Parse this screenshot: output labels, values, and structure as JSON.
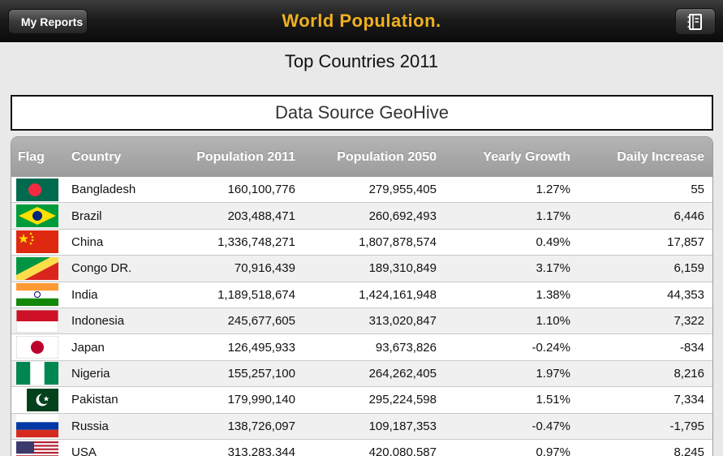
{
  "navbar": {
    "back_label": "My Reports",
    "title": "World Population."
  },
  "subtitle": "Top Countries 2011",
  "source_label": "Data Source GeoHive",
  "table": {
    "headers": [
      "Flag",
      "Country",
      "Population 2011",
      "Population 2050",
      "Yearly Growth",
      "Daily Increase"
    ],
    "rows": [
      {
        "flag": "bangladesh-flag",
        "country": "Bangladesh",
        "pop2011": "160,100,776",
        "pop2050": "279,955,405",
        "growth": "1.27%",
        "daily": "55"
      },
      {
        "flag": "brazil-flag",
        "country": "Brazil",
        "pop2011": "203,488,471",
        "pop2050": "260,692,493",
        "growth": "1.17%",
        "daily": "6,446"
      },
      {
        "flag": "china-flag",
        "country": "China",
        "pop2011": "1,336,748,271",
        "pop2050": "1,807,878,574",
        "growth": "0.49%",
        "daily": "17,857"
      },
      {
        "flag": "congo-flag",
        "country": "Congo DR.",
        "pop2011": "70,916,439",
        "pop2050": "189,310,849",
        "growth": "3.17%",
        "daily": "6,159"
      },
      {
        "flag": "india-flag",
        "country": "India",
        "pop2011": "1,189,518,674",
        "pop2050": "1,424,161,948",
        "growth": "1.38%",
        "daily": "44,353"
      },
      {
        "flag": "indonesia-flag",
        "country": "Indonesia",
        "pop2011": "245,677,605",
        "pop2050": "313,020,847",
        "growth": "1.10%",
        "daily": "7,322"
      },
      {
        "flag": "japan-flag",
        "country": "Japan",
        "pop2011": "126,495,933",
        "pop2050": "93,673,826",
        "growth": "-0.24%",
        "daily": "-834"
      },
      {
        "flag": "nigeria-flag",
        "country": "Nigeria",
        "pop2011": "155,257,100",
        "pop2050": "264,262,405",
        "growth": "1.97%",
        "daily": "8,216"
      },
      {
        "flag": "pakistan-flag",
        "country": "Pakistan",
        "pop2011": "179,990,140",
        "pop2050": "295,224,598",
        "growth": "1.51%",
        "daily": "7,334"
      },
      {
        "flag": "russia-flag",
        "country": "Russia",
        "pop2011": "138,726,097",
        "pop2050": "109,187,353",
        "growth": "-0.47%",
        "daily": "-1,795"
      },
      {
        "flag": "usa-flag",
        "country": "USA",
        "pop2011": "313,283,344",
        "pop2050": "420,080,587",
        "growth": "0.97%",
        "daily": "8,245"
      }
    ]
  },
  "colors": {
    "title_gold": "#f0b020",
    "header_gray": "#a8a8a8"
  }
}
